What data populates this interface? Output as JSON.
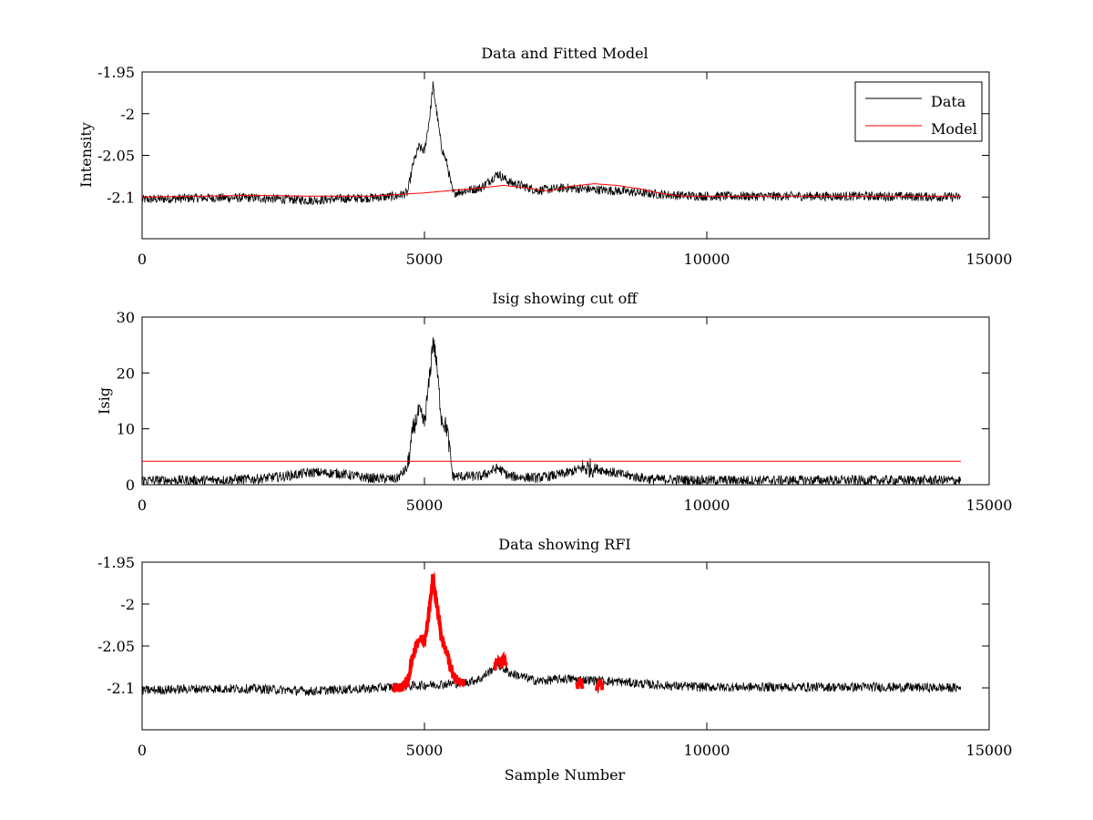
{
  "chart_data": [
    {
      "type": "line",
      "title": "Data and Fitted Model",
      "xlabel": "",
      "ylabel": "Intensity",
      "xlim": [
        0,
        15000
      ],
      "ylim": [
        -2.15,
        -1.95
      ],
      "xticks": [
        0,
        5000,
        10000,
        15000
      ],
      "yticks": [
        -1.95,
        -2,
        -2.05,
        -2.1
      ],
      "ytick_labels": [
        "-1.95",
        "-2",
        "-2.05",
        "-2.1"
      ],
      "xtick_labels": [
        "0",
        "5000",
        "10000",
        "15000"
      ],
      "legend_position": "top-right",
      "series": [
        {
          "name": "Data",
          "color": "#000000",
          "x": [
            0,
            1000,
            2000,
            3000,
            3500,
            4000,
            4500,
            4700,
            4800,
            4900,
            5000,
            5100,
            5150,
            5200,
            5300,
            5400,
            5500,
            5600,
            6000,
            6300,
            6500,
            7000,
            7500,
            8000,
            8500,
            9000,
            9500,
            10000,
            11000,
            12000,
            13000,
            14500
          ],
          "y": [
            -2.103,
            -2.101,
            -2.101,
            -2.104,
            -2.102,
            -2.101,
            -2.099,
            -2.095,
            -2.06,
            -2.04,
            -2.045,
            -2.0,
            -1.966,
            -1.99,
            -2.04,
            -2.06,
            -2.095,
            -2.094,
            -2.089,
            -2.072,
            -2.082,
            -2.092,
            -2.089,
            -2.091,
            -2.093,
            -2.096,
            -2.098,
            -2.099,
            -2.099,
            -2.099,
            -2.099,
            -2.1
          ]
        },
        {
          "name": "Model",
          "color": "#ff0000",
          "x": [
            0,
            1000,
            2000,
            3000,
            4000,
            4500,
            5000,
            5500,
            6000,
            6400,
            6800,
            7200,
            7600,
            8000,
            8400,
            8800,
            9200,
            9600,
            10000,
            11000,
            12000,
            13000,
            14500
          ],
          "y": [
            -2.1,
            -2.099,
            -2.098,
            -2.099,
            -2.099,
            -2.097,
            -2.095,
            -2.092,
            -2.089,
            -2.086,
            -2.089,
            -2.093,
            -2.087,
            -2.084,
            -2.086,
            -2.09,
            -2.096,
            -2.099,
            -2.099,
            -2.099,
            -2.099,
            -2.099,
            -2.099
          ]
        }
      ]
    },
    {
      "type": "line",
      "title": "Isig showing cut off",
      "xlabel": "",
      "ylabel": "Isig",
      "xlim": [
        0,
        15000
      ],
      "ylim": [
        0,
        30
      ],
      "xticks": [
        0,
        5000,
        10000,
        15000
      ],
      "yticks": [
        0,
        10,
        20,
        30
      ],
      "ytick_labels": [
        "0",
        "10",
        "20",
        "30"
      ],
      "xtick_labels": [
        "0",
        "5000",
        "10000",
        "15000"
      ],
      "series": [
        {
          "color": "#000000",
          "x": [
            0,
            1000,
            2000,
            2500,
            3000,
            3500,
            4000,
            4500,
            4700,
            4800,
            4900,
            5000,
            5100,
            5150,
            5200,
            5300,
            5400,
            5500,
            5600,
            6000,
            6300,
            6500,
            7000,
            7500,
            7800,
            8000,
            8500,
            9000,
            10000,
            12000,
            14500
          ],
          "y": [
            0.8,
            0.8,
            1.0,
            1.5,
            2.2,
            2.0,
            1.2,
            1.0,
            3.0,
            10.0,
            13.0,
            11.0,
            20.0,
            26.0,
            23.0,
            12.0,
            10.0,
            1.5,
            1.5,
            1.5,
            3.0,
            1.5,
            1.2,
            2.0,
            3.0,
            3.0,
            1.8,
            1.0,
            0.8,
            0.8,
            0.8
          ]
        },
        {
          "color": "#ff0000",
          "x": [
            0,
            14500
          ],
          "y": [
            4.2,
            4.2
          ]
        }
      ]
    },
    {
      "type": "line",
      "title": "Data showing RFI",
      "xlabel": "Sample Number",
      "ylabel": "",
      "xlim": [
        0,
        15000
      ],
      "ylim": [
        -2.15,
        -1.95
      ],
      "xticks": [
        0,
        5000,
        10000,
        15000
      ],
      "yticks": [
        -1.95,
        -2,
        -2.05,
        -2.1
      ],
      "ytick_labels": [
        "-1.95",
        "-2",
        "-2.05",
        "-2.1"
      ],
      "xtick_labels": [
        "0",
        "5000",
        "10000",
        "15000"
      ],
      "series": [
        {
          "color": "#000000",
          "x": [
            0,
            1000,
            2000,
            3000,
            3500,
            4000,
            4400,
            5700,
            6000,
            6300,
            6500,
            7000,
            7500,
            8000,
            8500,
            9000,
            9500,
            10000,
            11000,
            12000,
            13000,
            14500
          ],
          "y": [
            -2.103,
            -2.101,
            -2.101,
            -2.104,
            -2.102,
            -2.101,
            -2.099,
            -2.094,
            -2.089,
            -2.072,
            -2.082,
            -2.092,
            -2.089,
            -2.091,
            -2.093,
            -2.096,
            -2.098,
            -2.099,
            -2.099,
            -2.099,
            -2.099,
            -2.1
          ]
        },
        {
          "color": "#ff0000",
          "x": [
            4450,
            4600,
            4700,
            4800,
            4900,
            5000,
            5100,
            5150,
            5200,
            5300,
            5400,
            5500,
            5600,
            5700
          ],
          "y": [
            -2.1,
            -2.099,
            -2.093,
            -2.06,
            -2.04,
            -2.045,
            -2.0,
            -1.966,
            -1.99,
            -2.04,
            -2.06,
            -2.085,
            -2.093,
            -2.095
          ]
        },
        {
          "color": "#ff0000",
          "x": [
            6250,
            6300,
            6350,
            6400,
            6450
          ],
          "y": [
            -2.074,
            -2.066,
            -2.072,
            -2.066,
            -2.074
          ]
        },
        {
          "color": "#ff0000",
          "x": [
            7700,
            7750,
            7800
          ],
          "y": [
            -2.098,
            -2.09,
            -2.098
          ]
        },
        {
          "color": "#ff0000",
          "x": [
            8050,
            8100,
            8150
          ],
          "y": [
            -2.098,
            -2.09,
            -2.098
          ]
        }
      ]
    }
  ]
}
